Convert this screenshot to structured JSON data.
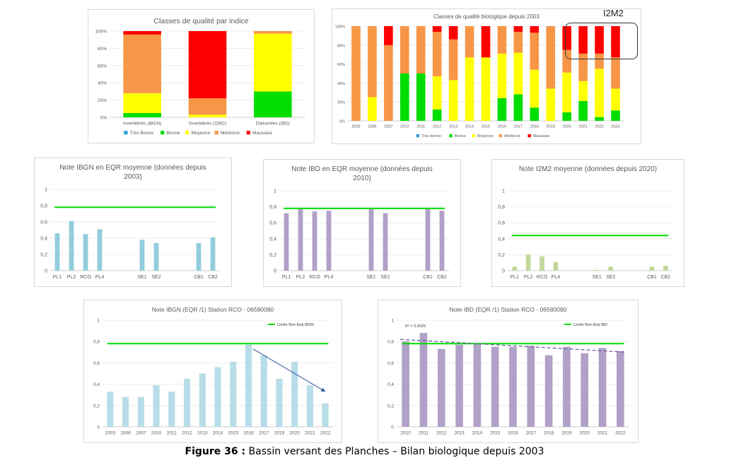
{
  "caption": {
    "figure_label": "Figure 36 :",
    "text": "Bassin versant des Planches – Bilan biologique depuis 2003"
  },
  "annotation": {
    "i2m2_label": "I2M2"
  },
  "chart_data": [
    {
      "id": "c1",
      "type": "stacked-bar-100",
      "title": "Classes de qualité par indice",
      "categories": [
        "Invertébrés (IBGN)",
        "Invertébrés (I2M2)",
        "Diatomées (IBD)"
      ],
      "yticks": [
        "0%",
        "20%",
        "40%",
        "60%",
        "80%",
        "100%"
      ],
      "ylim": [
        0,
        100
      ],
      "series": [
        {
          "name": "Très Bonne",
          "color": "#2e9fd8",
          "values": [
            0,
            0,
            0
          ]
        },
        {
          "name": "Bonne",
          "color": "#00dd00",
          "values": [
            5,
            0,
            30
          ]
        },
        {
          "name": "Moyenne",
          "color": "#ffff00",
          "values": [
            23,
            3,
            67
          ]
        },
        {
          "name": "Médiocre",
          "color": "#f79646",
          "values": [
            68,
            19,
            3
          ]
        },
        {
          "name": "Mauvaise",
          "color": "#ff0000",
          "values": [
            4,
            78,
            0
          ]
        }
      ],
      "legend": "bottom"
    },
    {
      "id": "c2",
      "type": "stacked-bar-100",
      "title": "Classes de qualité biologique depuis 2003",
      "categories": [
        "2003",
        "2006",
        "2007",
        "2010",
        "2011",
        "2012",
        "2013",
        "2014",
        "2015",
        "2016",
        "2017",
        "2018",
        "2019",
        "2020",
        "2021",
        "2022",
        "2023"
      ],
      "yticks": [
        "0%",
        "20%",
        "40%",
        "60%",
        "80%",
        "100%"
      ],
      "ylim": [
        0,
        100
      ],
      "series": [
        {
          "name": "Très bonne",
          "color": "#2e9fd8",
          "values": [
            0,
            0,
            0,
            0,
            0,
            0,
            0,
            0,
            0,
            0,
            0,
            0,
            0,
            0,
            0,
            0,
            0
          ]
        },
        {
          "name": "Bonne",
          "color": "#00dd00",
          "values": [
            0,
            0,
            0,
            50,
            50,
            12,
            0,
            0,
            0,
            24,
            28,
            14,
            0,
            9,
            21,
            4,
            11
          ]
        },
        {
          "name": "Moyenne",
          "color": "#ffff00",
          "values": [
            0,
            25,
            0,
            0,
            0,
            35,
            43,
            67,
            67,
            47,
            44,
            40,
            34,
            42,
            21,
            51,
            23
          ]
        },
        {
          "name": "Médiocre",
          "color": "#f79646",
          "values": [
            100,
            75,
            80,
            50,
            50,
            47,
            43,
            33,
            0,
            29,
            22,
            39,
            66,
            24,
            29,
            16,
            33
          ]
        },
        {
          "name": "Mauvaise",
          "color": "#ff0000",
          "values": [
            0,
            0,
            20,
            0,
            0,
            6,
            14,
            0,
            33,
            0,
            6,
            7,
            0,
            25,
            29,
            29,
            33
          ]
        }
      ],
      "legend": "bottom"
    },
    {
      "id": "c3",
      "type": "bar",
      "title": "Note IBGN en EQR moyenne (données depuis 2003)",
      "title_lines": [
        "Note IBGN en EQR moyenne (données depuis",
        "2003)"
      ],
      "categories": [
        "PL1",
        "PL2",
        "RCO",
        "PL4",
        "",
        "",
        "SE1",
        "SE2",
        "",
        "",
        "CB1",
        "CB2"
      ],
      "values": [
        0.46,
        0.61,
        0.45,
        0.51,
        null,
        null,
        0.38,
        0.34,
        null,
        null,
        0.34,
        0.41
      ],
      "bar_color": "#92cddc",
      "reference": 0.78,
      "reference_color": "#00dd00",
      "yticks": [
        "0",
        "0,2",
        "0,4",
        "0,6",
        "0,8",
        "1"
      ],
      "ylim": [
        0,
        1
      ]
    },
    {
      "id": "c4",
      "type": "bar",
      "title": "Note IBD en EQR moyenne (données depuis 2010)",
      "title_lines": [
        "Note IBD en EQR moyenne (données depuis",
        "2010)"
      ],
      "categories": [
        "PL1",
        "PL2",
        "RCO",
        "PL4",
        "",
        "",
        "SE1",
        "SE2",
        "",
        "",
        "CB1",
        "CB2"
      ],
      "values": [
        0.72,
        0.77,
        0.74,
        0.75,
        null,
        null,
        0.77,
        0.72,
        null,
        null,
        0.77,
        0.75
      ],
      "bar_color": "#b1a0c7",
      "reference": 0.78,
      "reference_color": "#00dd00",
      "yticks": [
        "0",
        "0,2",
        "0,4",
        "0,6",
        "0,8",
        "1"
      ],
      "ylim": [
        0,
        1
      ]
    },
    {
      "id": "c5",
      "type": "bar",
      "title": "Note I2M2 moyenne (données depuis 2020)",
      "title_lines": [
        "Note I2M2 moyenne (données depuis 2020)"
      ],
      "categories": [
        "PL1",
        "PL2",
        "RCO",
        "PL4",
        "",
        "",
        "SE1",
        "SE2",
        "",
        "",
        "CB1",
        "CB2"
      ],
      "values": [
        0.05,
        0.2,
        0.18,
        0.11,
        null,
        null,
        0.01,
        0.05,
        null,
        null,
        0.05,
        0.06
      ],
      "bar_color": "#c4d79b",
      "reference": 0.44,
      "reference_color": "#00dd00",
      "yticks": [
        "0",
        "0,2",
        "0,4",
        "0,6",
        "0,8",
        "1"
      ],
      "ylim": [
        0,
        1
      ]
    },
    {
      "id": "c6",
      "type": "bar",
      "title": "Note IBGN (EQR /1) Station RCO - 06580080",
      "title_lines": [
        "Note IBGN (EQR /1) Station RCO - 06580080"
      ],
      "categories": [
        "2003",
        "2006",
        "2007",
        "2010",
        "2011",
        "2012",
        "2013",
        "2014",
        "2015",
        "2016",
        "2017",
        "2019",
        "2020",
        "2021",
        "2022"
      ],
      "values": [
        0.33,
        0.28,
        0.28,
        0.39,
        0.33,
        0.45,
        0.5,
        0.56,
        0.61,
        0.77,
        0.67,
        0.45,
        0.61,
        0.39,
        0.22
      ],
      "bar_color": "#b7dde8",
      "reference": 0.78,
      "reference_color": "#00dd00",
      "reference_label": "Limite Bon Etat IBGN",
      "arrow_from": [
        "2016",
        0.73
      ],
      "arrow_to": [
        "2022",
        0.33
      ],
      "arrow_color": "#2f5597",
      "yticks": [
        "0",
        "0,2",
        "0,4",
        "0,6",
        "0,8",
        "1"
      ],
      "ylim": [
        0,
        1
      ]
    },
    {
      "id": "c7",
      "type": "bar",
      "title": "Note IBD (EQR /1) Station RCO - 06580080",
      "title_lines": [
        "Note IBD (EQR /1) Station RCO - 06580080"
      ],
      "categories": [
        "2010",
        "2011",
        "2012",
        "2013",
        "2014",
        "2015",
        "2016",
        "2017",
        "2018",
        "2019",
        "2020",
        "2021",
        "2022"
      ],
      "values": [
        0.8,
        0.88,
        0.73,
        0.77,
        0.78,
        0.75,
        0.75,
        0.76,
        0.67,
        0.75,
        0.69,
        0.74,
        0.71
      ],
      "bar_color": "#b1a0c7",
      "reference": 0.78,
      "reference_color": "#00dd00",
      "reference_label": "Limite Bon Etat IBD",
      "trend": [
        0.82,
        0.7
      ],
      "trend_color": "#7060a0",
      "r2_label": "R² = 0,4625",
      "yticks": [
        "0",
        "0,2",
        "0,4",
        "0,6",
        "0,8",
        "1"
      ],
      "ylim": [
        0,
        1
      ]
    }
  ]
}
